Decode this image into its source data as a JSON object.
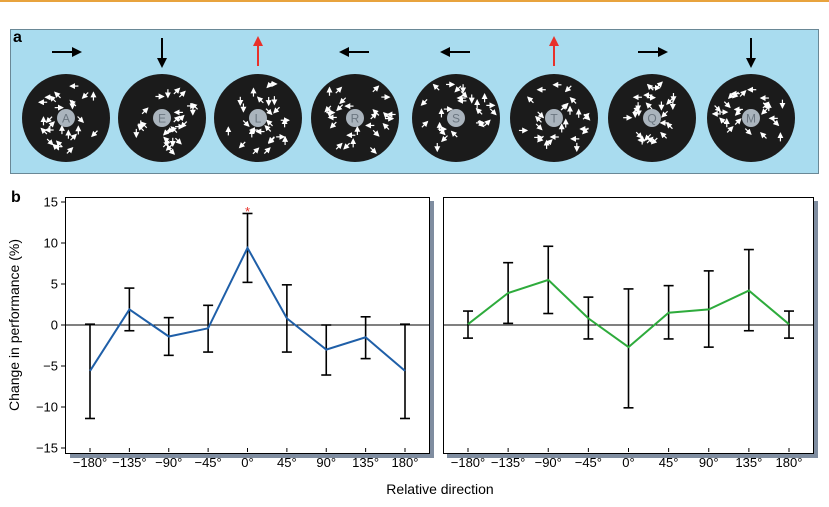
{
  "panel_a": {
    "letter": "a",
    "stimuli": [
      {
        "letter": "A",
        "direction": "right",
        "highlight": false
      },
      {
        "letter": "E",
        "direction": "down",
        "highlight": false
      },
      {
        "letter": "L",
        "direction": "up",
        "highlight": true
      },
      {
        "letter": "R",
        "direction": "left",
        "highlight": false
      },
      {
        "letter": "S",
        "direction": "left",
        "highlight": false
      },
      {
        "letter": "T",
        "direction": "up",
        "highlight": true
      },
      {
        "letter": "Q",
        "direction": "right",
        "highlight": false
      },
      {
        "letter": "M",
        "direction": "down",
        "highlight": false
      }
    ],
    "colors": {
      "background": "#a9dcef",
      "disk": "#1b1b1b",
      "arrow": "#000000",
      "highlight_arrow": "#e8312a",
      "center_dot": "#aab4bd"
    }
  },
  "panel_b": {
    "letter": "b"
  },
  "chart_data": [
    {
      "type": "line",
      "xlabel": "Relative direction",
      "ylabel": "Change in performance (%)",
      "x": [
        -180,
        -135,
        -90,
        -45,
        0,
        45,
        90,
        135,
        180
      ],
      "xtick_labels": [
        "−180°",
        "−135°",
        "−90°",
        "−45°",
        "0°",
        "45°",
        "90°",
        "135°",
        "180°"
      ],
      "ylim": [
        -15,
        15
      ],
      "yticks": [
        15,
        10,
        5,
        0,
        -5,
        -10,
        -15
      ],
      "ytick_labels": [
        "15",
        "10",
        "5",
        "0",
        "−5",
        "−10",
        "−15"
      ],
      "series": [
        {
          "color": "#1f5fa8",
          "values": [
            -5.6,
            1.9,
            -1.4,
            -0.4,
            9.4,
            0.8,
            -3.0,
            -1.5,
            -5.6
          ],
          "err_low": [
            -11.4,
            -0.7,
            -3.7,
            -3.3,
            5.2,
            -3.3,
            -6.1,
            -4.1,
            -11.4
          ],
          "err_high": [
            0.1,
            4.5,
            0.9,
            2.4,
            13.6,
            4.9,
            0.0,
            1.0,
            0.1
          ]
        }
      ],
      "annotations": [
        {
          "x": 0,
          "text": "*",
          "color": "#e8312a"
        }
      ]
    },
    {
      "type": "line",
      "xlabel": "Relative direction",
      "x": [
        -180,
        -135,
        -90,
        -45,
        0,
        45,
        90,
        135,
        180
      ],
      "xtick_labels": [
        "−180°",
        "−135°",
        "−90°",
        "−45°",
        "0°",
        "45°",
        "90°",
        "135°",
        "180°"
      ],
      "ylim": [
        -15,
        15
      ],
      "series": [
        {
          "color": "#2eab3c",
          "values": [
            0.1,
            3.9,
            5.5,
            0.8,
            -2.7,
            1.5,
            1.9,
            4.2,
            0.1
          ],
          "err_low": [
            -1.6,
            0.2,
            1.4,
            -1.7,
            -10.1,
            -1.7,
            -2.7,
            -0.7,
            -1.6
          ],
          "err_high": [
            1.7,
            7.6,
            9.6,
            3.4,
            4.4,
            4.8,
            6.6,
            9.2,
            1.7
          ]
        }
      ]
    }
  ]
}
